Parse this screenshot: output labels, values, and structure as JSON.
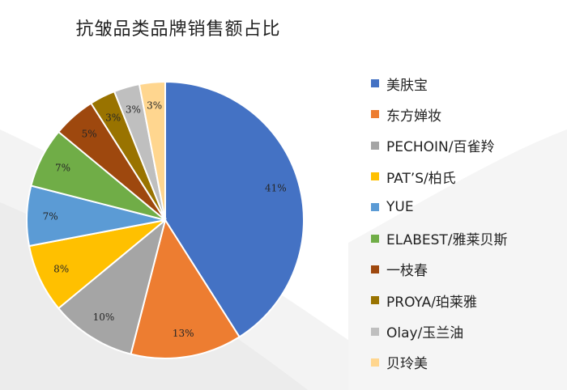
{
  "chart_data": {
    "type": "pie",
    "title": "抗皱品类品牌销售额占比",
    "legend_position": "right",
    "slices": [
      {
        "label": "美肤宝",
        "value": 41,
        "value_label": "41%",
        "color": "#4472C4"
      },
      {
        "label": "东方婵妆",
        "value": 13,
        "value_label": "13%",
        "color": "#ED7D31"
      },
      {
        "label": "PECHOIN/百雀羚",
        "value": 10,
        "value_label": "10%",
        "color": "#A5A5A5"
      },
      {
        "label": "PAT’S/柏氏",
        "value": 8,
        "value_label": "8%",
        "color": "#FFC000"
      },
      {
        "label": "YUE",
        "value": 7,
        "value_label": "7%",
        "color": "#5B9BD5"
      },
      {
        "label": "ELABEST/雅莱贝斯",
        "value": 7,
        "value_label": "7%",
        "color": "#70AD47"
      },
      {
        "label": "一枝春",
        "value": 5,
        "value_label": "5%",
        "color": "#9E480E"
      },
      {
        "label": "PROYA/珀莱雅",
        "value": 3,
        "value_label": "3%",
        "color": "#997300"
      },
      {
        "label": "Olay/玉兰油",
        "value": 3,
        "value_label": "3%",
        "color": "#BFBFBF"
      },
      {
        "label": "贝玲美",
        "value": 3,
        "value_label": "3%",
        "color": "#FFD68F"
      }
    ]
  }
}
